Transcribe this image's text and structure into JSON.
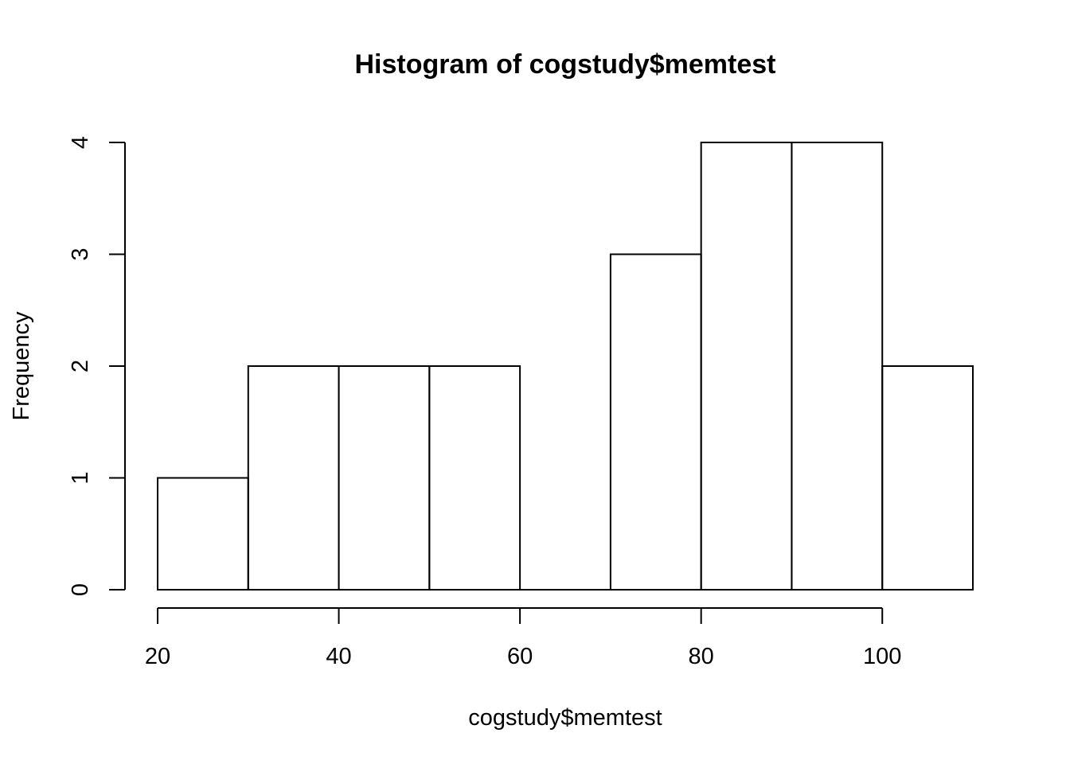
{
  "chart_data": {
    "type": "bar",
    "subtype": "histogram",
    "title": "Histogram of cogstudy$memtest",
    "xlabel": "cogstudy$memtest",
    "ylabel": "Frequency",
    "bins": [
      {
        "from": 20,
        "to": 30,
        "count": 1
      },
      {
        "from": 30,
        "to": 40,
        "count": 2
      },
      {
        "from": 40,
        "to": 50,
        "count": 2
      },
      {
        "from": 50,
        "to": 60,
        "count": 2
      },
      {
        "from": 60,
        "to": 70,
        "count": 0
      },
      {
        "from": 70,
        "to": 80,
        "count": 3
      },
      {
        "from": 80,
        "to": 90,
        "count": 4
      },
      {
        "from": 90,
        "to": 100,
        "count": 4
      },
      {
        "from": 100,
        "to": 110,
        "count": 2
      }
    ],
    "xticks": [
      "20",
      "40",
      "60",
      "80",
      "100"
    ],
    "yticks": [
      "0",
      "1",
      "2",
      "3",
      "4"
    ],
    "xlim": [
      20,
      110
    ],
    "ylim": [
      0,
      4
    ],
    "grid": false,
    "bar_fill": "#ffffff",
    "bar_stroke": "#000000"
  }
}
